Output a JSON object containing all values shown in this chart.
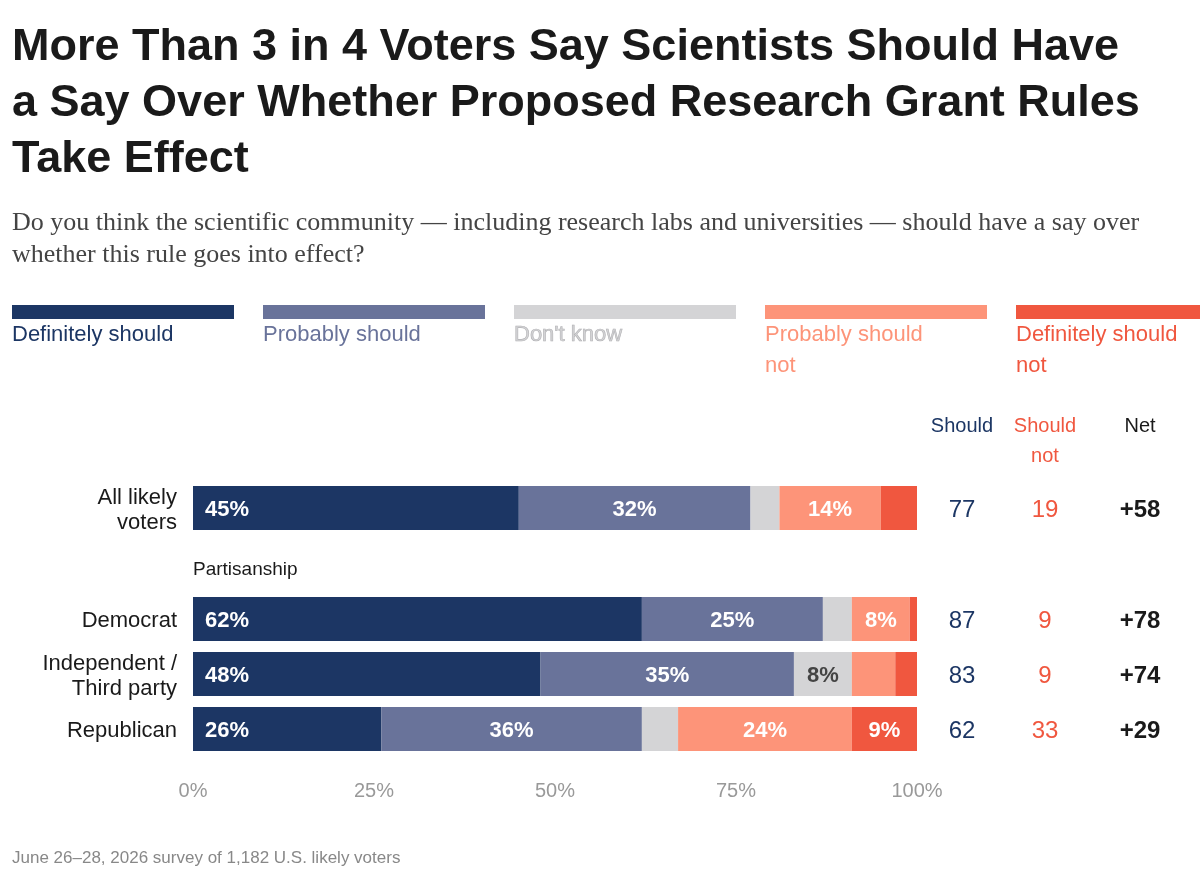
{
  "chart_data": {
    "type": "bar",
    "stacked": true,
    "orientation": "horizontal",
    "title": "More Than 3 in 4 Voters Say Scientists Should Have a Say Over Whether Proposed Research Grant Rules Take Effect",
    "subtitle": "Do you think the scientific community — including research labs and universities — should have a say over whether this rule goes into effect?",
    "categories": [
      "All likely voters",
      "Democrat",
      "Independent / Third party",
      "Republican"
    ],
    "series": [
      {
        "name": "Definitely should",
        "color": "#1c3664",
        "values": [
          45,
          62,
          48,
          26
        ],
        "value_labels": [
          "45%",
          "62%",
          "48%",
          "26%"
        ]
      },
      {
        "name": "Probably should",
        "color": "#69739a",
        "values": [
          32,
          25,
          35,
          36
        ],
        "value_labels": [
          "32%",
          "25%",
          "35%",
          "36%"
        ]
      },
      {
        "name": "Don't know",
        "color": "#d4d4d6",
        "values": [
          4,
          4,
          8,
          5
        ],
        "value_labels": [
          null,
          null,
          "8%",
          null
        ]
      },
      {
        "name": "Probably should not",
        "color": "#fd9479",
        "values": [
          14,
          8,
          6,
          24
        ],
        "value_labels": [
          "14%",
          "8%",
          null,
          "24%"
        ]
      },
      {
        "name": "Definitely should not",
        "color": "#f0573f",
        "values": [
          5,
          1,
          3,
          9
        ],
        "value_labels": [
          null,
          null,
          null,
          "9%"
        ]
      }
    ],
    "xlim": [
      0,
      100
    ],
    "xticks": [
      {
        "value": 0,
        "label": "0%"
      },
      {
        "value": 25,
        "label": "25%"
      },
      {
        "value": 50,
        "label": "50%"
      },
      {
        "value": 75,
        "label": "75%"
      },
      {
        "value": 100,
        "label": "100%"
      }
    ],
    "legend": "top",
    "annotations": [
      "Should",
      "Should not",
      "Net",
      "77",
      "19",
      "+58",
      "87",
      "9",
      "+78",
      "83",
      "9",
      "+74",
      "62",
      "33",
      "+29",
      "Partisanship",
      "June 26–28, 2026 survey of 1,182 U.S. likely voters"
    ]
  }
}
